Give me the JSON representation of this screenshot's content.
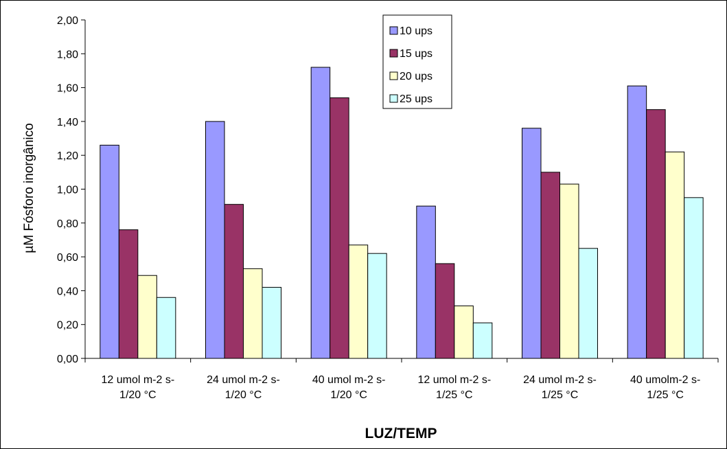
{
  "chart_data": {
    "type": "bar",
    "title": "",
    "xlabel": "LUZ/TEMP",
    "ylabel": "µM Fósforo inorgânico",
    "ylim": [
      0,
      2.0
    ],
    "ytick_step": 0.2,
    "ytick_labels": [
      "0,00",
      "0,20",
      "0,40",
      "0,60",
      "0,80",
      "1,00",
      "1,20",
      "1,40",
      "1,60",
      "1,80",
      "2,00"
    ],
    "categories": [
      [
        "12 umol m-2 s-",
        "1/20 °C"
      ],
      [
        "24 umol m-2 s-",
        "1/20 °C"
      ],
      [
        "40 umol m-2 s-",
        "1/20 °C"
      ],
      [
        "12 umol m-2 s-",
        "1/25 °C"
      ],
      [
        "24 umol m-2 s-",
        "1/25 °C"
      ],
      [
        "40 umolm-2 s-",
        "1/25 °C"
      ]
    ],
    "series": [
      {
        "name": "10 ups",
        "color": "#9999ff",
        "values": [
          1.26,
          1.4,
          1.72,
          0.9,
          1.36,
          1.61
        ]
      },
      {
        "name": "15 ups",
        "color": "#993366",
        "values": [
          0.76,
          0.91,
          1.54,
          0.56,
          1.1,
          1.47
        ]
      },
      {
        "name": "20 ups",
        "color": "#ffffcc",
        "values": [
          0.49,
          0.53,
          0.67,
          0.31,
          1.03,
          1.22
        ]
      },
      {
        "name": "25 ups",
        "color": "#ccffff",
        "values": [
          0.36,
          0.42,
          0.62,
          0.21,
          0.65,
          0.95
        ]
      }
    ],
    "grid": false,
    "legend_position": "top-right"
  }
}
